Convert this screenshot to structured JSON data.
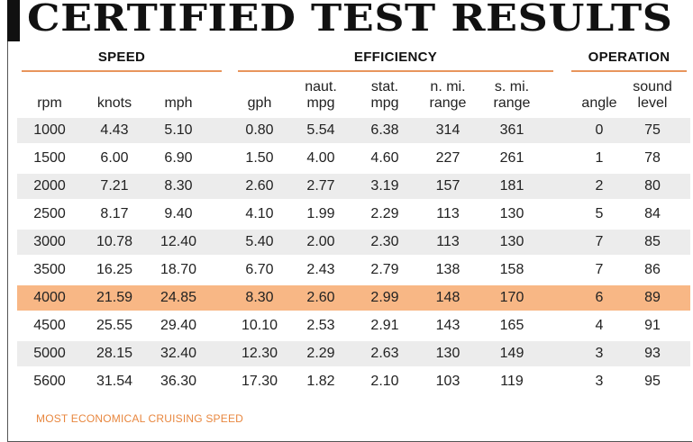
{
  "title": "CERTIFIED TEST RESULTS",
  "groups": {
    "speed": "SPEED",
    "efficiency": "EFFICIENCY",
    "operation": "OPERATION"
  },
  "columns": [
    "rpm",
    "knots",
    "mph",
    "gph",
    "naut.\nmpg",
    "stat.\nmpg",
    "n. mi.\nrange",
    "s. mi.\nrange",
    "angle",
    "sound\nlevel"
  ],
  "rows": [
    [
      "1000",
      "4.43",
      "5.10",
      "0.80",
      "5.54",
      "6.38",
      "314",
      "361",
      "0",
      "75"
    ],
    [
      "1500",
      "6.00",
      "6.90",
      "1.50",
      "4.00",
      "4.60",
      "227",
      "261",
      "1",
      "78"
    ],
    [
      "2000",
      "7.21",
      "8.30",
      "2.60",
      "2.77",
      "3.19",
      "157",
      "181",
      "2",
      "80"
    ],
    [
      "2500",
      "8.17",
      "9.40",
      "4.10",
      "1.99",
      "2.29",
      "113",
      "130",
      "5",
      "84"
    ],
    [
      "3000",
      "10.78",
      "12.40",
      "5.40",
      "2.00",
      "2.30",
      "113",
      "130",
      "7",
      "85"
    ],
    [
      "3500",
      "16.25",
      "18.70",
      "6.70",
      "2.43",
      "2.79",
      "138",
      "158",
      "7",
      "86"
    ],
    [
      "4000",
      "21.59",
      "24.85",
      "8.30",
      "2.60",
      "2.99",
      "148",
      "170",
      "6",
      "89"
    ],
    [
      "4500",
      "25.55",
      "29.40",
      "10.10",
      "2.53",
      "2.91",
      "143",
      "165",
      "4",
      "91"
    ],
    [
      "5000",
      "28.15",
      "32.40",
      "12.30",
      "2.29",
      "2.63",
      "130",
      "149",
      "3",
      "93"
    ],
    [
      "5600",
      "31.54",
      "36.30",
      "17.30",
      "1.82",
      "2.10",
      "103",
      "119",
      "3",
      "95"
    ]
  ],
  "highlight_row_index": 6,
  "colors": {
    "highlight": "#f8b785",
    "accent": "#e8955c",
    "footnote": "#e8873f",
    "shade": "#ececec"
  },
  "footnote": "MOST ECONOMICAL CRUISING SPEED"
}
